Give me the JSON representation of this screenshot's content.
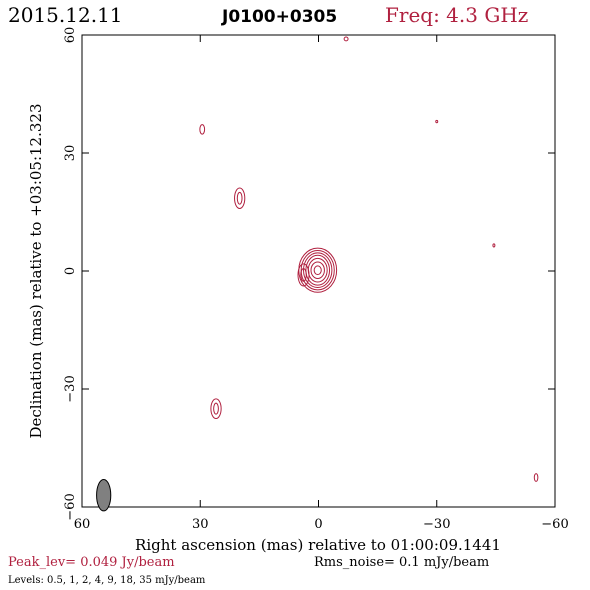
{
  "header": {
    "date": "2015.12.11",
    "source": "J0100+0305",
    "freq": "Freq: 4.3 GHz"
  },
  "footer": {
    "peak": "Peak_lev=  0.049 Jy/beam",
    "rms": "Rms_noise=  0.1 mJy/beam",
    "levels": "Levels: 0.5,    1,    2,    4,    9,   18,   35 mJy/beam"
  },
  "colors": {
    "contour": "#b0203f",
    "axis": "#000000",
    "beam_fill": "#808080",
    "peak_text": "#b0203f",
    "freq_text": "#b0203f"
  },
  "chart_data": {
    "type": "contour",
    "xlabel": "Right ascension (mas) relative to 01:00:09.1441",
    "ylabel": "Declination (mas) relative to +03:05:12.323",
    "xlim": [
      60,
      -60
    ],
    "ylim": [
      -60,
      60
    ],
    "x_ticks": [
      60,
      30,
      0,
      -30,
      -60
    ],
    "y_ticks": [
      -60,
      -30,
      0,
      30,
      60
    ],
    "x_tick_labels": [
      "60",
      "30",
      "0",
      "−30",
      "−60"
    ],
    "y_tick_labels": [
      "−60",
      "−30",
      "0",
      "30",
      "60"
    ],
    "levels_mJy": [
      0.5,
      1,
      2,
      4,
      9,
      18,
      35
    ],
    "peak_Jy": 0.049,
    "rms_mJy": 0.1,
    "components": [
      {
        "ra": 0.2,
        "dec": 0.2,
        "rx": [
          4.8,
          4.2,
          3.6,
          3.0,
          2.4,
          1.7,
          0.9
        ],
        "ry": [
          5.6,
          5.0,
          4.4,
          3.8,
          3.0,
          2.1,
          1.1
        ],
        "levels": 7
      },
      {
        "ra": 3.8,
        "dec": -1.0,
        "rx": [
          1.4,
          0.7
        ],
        "ry": [
          2.8,
          1.6
        ],
        "levels": 2
      },
      {
        "ra": 20.0,
        "dec": 18.5,
        "rx": [
          1.3,
          0.6
        ],
        "ry": [
          2.6,
          1.5
        ],
        "levels": 2
      },
      {
        "ra": 26.0,
        "dec": -35.0,
        "rx": [
          1.3,
          0.6
        ],
        "ry": [
          2.5,
          1.4
        ],
        "levels": 2
      },
      {
        "ra": 29.5,
        "dec": 36.0,
        "rx": [
          0.6
        ],
        "ry": [
          1.2
        ],
        "levels": 1
      },
      {
        "ra": -7.0,
        "dec": 59.0,
        "rx": [
          0.5
        ],
        "ry": [
          0.5
        ],
        "levels": 1
      },
      {
        "ra": -30.0,
        "dec": 38.0,
        "rx": [
          0.25
        ],
        "ry": [
          0.3
        ],
        "levels": 1
      },
      {
        "ra": -44.5,
        "dec": 6.5,
        "rx": [
          0.25
        ],
        "ry": [
          0.4
        ],
        "levels": 1
      },
      {
        "ra": -55.2,
        "dec": -52.5,
        "rx": [
          0.45
        ],
        "ry": [
          1.0
        ],
        "levels": 1
      }
    ],
    "beam": {
      "ra": 54.5,
      "dec": -57.0,
      "major": 4.0,
      "minor": 1.8,
      "pa_deg": 0
    },
    "grid": false,
    "legend": "none"
  }
}
